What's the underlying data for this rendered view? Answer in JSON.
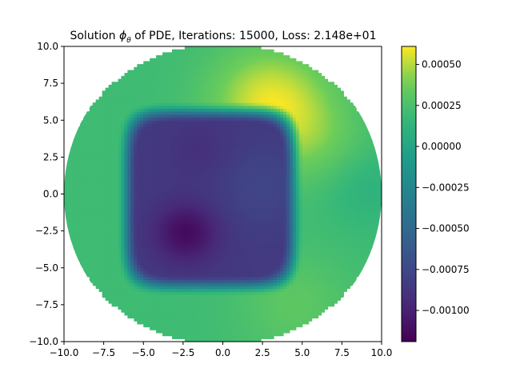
{
  "chart_data": {
    "type": "heatmap",
    "title": "Solution ϕθ of PDE, Iterations: 15000, Loss: 2.148e+01",
    "title_parts": {
      "prefix": "Solution ",
      "symbol": "ϕ",
      "subscript": "θ",
      "suffix": " of PDE, Iterations: 15000, Loss: 2.148e+01"
    },
    "xlabel": "",
    "ylabel": "",
    "xlim": [
      -10,
      10
    ],
    "ylim": [
      -10,
      10
    ],
    "xticks": [
      -10,
      -7.5,
      -5,
      -2.5,
      0,
      2.5,
      5,
      7.5,
      10
    ],
    "yticks": [
      -10,
      -7.5,
      -5,
      -2.5,
      0,
      2.5,
      5,
      7.5,
      10
    ],
    "xtick_labels": [
      "−10.0",
      "−7.5",
      "−5.0",
      "−2.5",
      "0.0",
      "2.5",
      "5.0",
      "7.5",
      "10.0"
    ],
    "ytick_labels": [
      "−10.0",
      "−7.5",
      "−5.0",
      "−2.5",
      "0.0",
      "2.5",
      "5.0",
      "7.5",
      "10.0"
    ],
    "domain": {
      "shape": "disk",
      "center": [
        0,
        0
      ],
      "radius": 10
    },
    "colormap": "viridis",
    "colorbar": {
      "vmin": -0.00119,
      "vmax": 0.00061,
      "ticks": [
        0.0005,
        0.00025,
        0,
        -0.00025,
        -0.0005,
        -0.00075,
        -0.001
      ],
      "tick_labels": [
        "0.00050",
        "0.00025",
        "0.00000",
        "−0.00025",
        "−0.00050",
        "−0.00075",
        "−0.00100"
      ]
    },
    "field": {
      "background_value": 0.0002,
      "regions": [
        {
          "description": "central depression",
          "value": -0.00085
        },
        {
          "description": "minimum",
          "center": [
            -2.2,
            -2.5
          ],
          "value": -0.00115
        },
        {
          "description": "upper-right ridge",
          "center": [
            3.0,
            6.0
          ],
          "value": 0.00058
        },
        {
          "description": "right edge",
          "center": [
            9.0,
            0.5
          ],
          "value": 0.00012
        },
        {
          "description": "bottom-right",
          "center": [
            4.0,
            -7.5
          ],
          "value": 0.00035
        }
      ],
      "grid_note": "approximate field sampled from the rendered figure"
    }
  }
}
